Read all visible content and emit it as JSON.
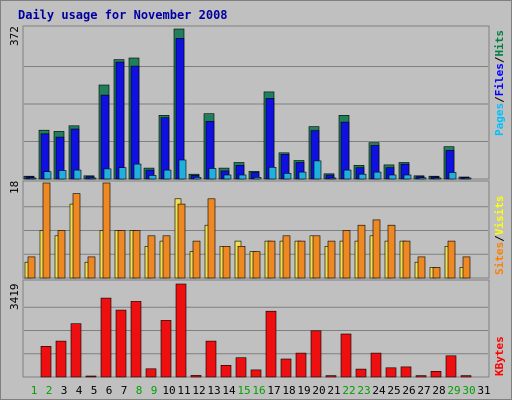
{
  "chart_data": {
    "type": "bar",
    "title": "Daily usage for November 2008",
    "categories": [
      "1",
      "2",
      "3",
      "4",
      "5",
      "6",
      "7",
      "8",
      "9",
      "10",
      "11",
      "12",
      "13",
      "14",
      "15",
      "16",
      "17",
      "18",
      "19",
      "20",
      "21",
      "22",
      "23",
      "24",
      "25",
      "26",
      "27",
      "28",
      "29",
      "30",
      "31"
    ],
    "weekend_days": [
      "1",
      "2",
      "8",
      "9",
      "15",
      "16",
      "22",
      "23",
      "29",
      "30"
    ],
    "panels": [
      {
        "id": "hits",
        "max_label": "372",
        "ylim": [
          0,
          372
        ],
        "legend": [
          "Pages",
          "Files",
          "Hits"
        ],
        "legend_colors": [
          "#00c0ff",
          "#0000ff",
          "#008040"
        ],
        "series": [
          {
            "name": "Hits",
            "color": "#20805a",
            "values": [
              7,
              121,
              118,
              132,
              8,
              233,
              296,
              300,
              27,
              158,
              372,
              12,
              162,
              27,
              41,
              19,
              216,
              65,
              46,
              130,
              13,
              158,
              34,
              90,
              35,
              41,
              8,
              7,
              80,
              5,
              0
            ]
          },
          {
            "name": "Files",
            "color": "#1010e0",
            "values": [
              5,
              112,
              104,
              124,
              6,
              208,
              290,
              280,
              22,
              152,
              349,
              9,
              143,
              20,
              34,
              16,
              200,
              61,
              41,
              120,
              10,
              141,
              28,
              83,
              28,
              37,
              6,
              5,
              71,
              4,
              0
            ]
          },
          {
            "name": "Pages",
            "color": "#20b0e0",
            "values": [
              2,
              18,
              21,
              22,
              2,
              25,
              28,
              37,
              9,
              22,
              47,
              4,
              26,
              10,
              10,
              4,
              29,
              14,
              17,
              45,
              2,
              22,
              12,
              17,
              10,
              10,
              3,
              2,
              16,
              2,
              0
            ]
          }
        ]
      },
      {
        "id": "visits",
        "max_label": "18",
        "ylim": [
          0,
          18
        ],
        "legend": [
          "Sites",
          "Visits"
        ],
        "legend_colors": [
          "#ff8000",
          "#ffff00"
        ],
        "series": [
          {
            "name": "Visits",
            "color": "#f0e050",
            "values": [
              3,
              9,
              8,
              14,
              3,
              9,
              9,
              9,
              6,
              7,
              15,
              5,
              10,
              6,
              7,
              5,
              7,
              7,
              7,
              8,
              6,
              7,
              7,
              8,
              7,
              7,
              3,
              2,
              6,
              2,
              0
            ]
          },
          {
            "name": "Sites",
            "color": "#ee8822",
            "values": [
              4,
              18,
              9,
              16,
              4,
              18,
              9,
              9,
              8,
              8,
              14,
              7,
              15,
              6,
              6,
              5,
              7,
              8,
              7,
              8,
              7,
              9,
              10,
              11,
              10,
              7,
              4,
              2,
              7,
              4,
              0
            ]
          }
        ]
      },
      {
        "id": "kbytes",
        "max_label": "3419",
        "ylim": [
          0,
          3419
        ],
        "legend": [
          "KBytes"
        ],
        "legend_colors": [
          "#ff0000"
        ],
        "series": [
          {
            "name": "KBytes",
            "color": "#ee1010",
            "values": [
              0,
              1130,
              1320,
              1960,
              20,
              2900,
              2460,
              2780,
              300,
              2080,
              3419,
              60,
              1320,
              430,
              710,
              260,
              2420,
              660,
              880,
              1700,
              50,
              1580,
              290,
              880,
              340,
              370,
              50,
              210,
              780,
              50,
              0
            ]
          }
        ]
      }
    ],
    "grid": true
  }
}
